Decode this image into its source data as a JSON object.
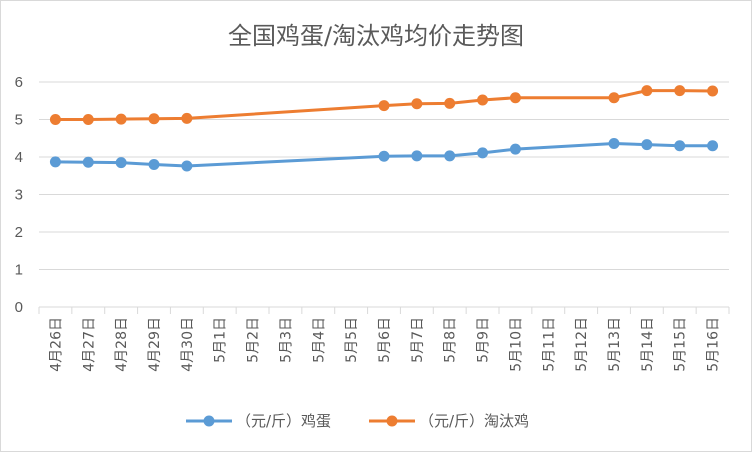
{
  "chart_data": {
    "type": "line",
    "title": "全国鸡蛋/淘汰鸡均价走势图",
    "xlabel": "",
    "ylabel": "",
    "ylim": [
      0,
      6
    ],
    "yticks": [
      "0",
      "1",
      "2",
      "3",
      "4",
      "5",
      "6"
    ],
    "grid": "horizontal",
    "legend": "bottom",
    "categories": [
      "4月26日",
      "4月27日",
      "4月28日",
      "4月29日",
      "4月30日",
      "5月1日",
      "5月2日",
      "5月3日",
      "5月4日",
      "5月5日",
      "5月6日",
      "5月7日",
      "5月8日",
      "5月9日",
      "5月10日",
      "5月11日",
      "5月12日",
      "5月13日",
      "5月14日",
      "5月15日",
      "5月16日"
    ],
    "series": [
      {
        "name": "（元/斤）鸡蛋",
        "color": "#5b9bd5",
        "values": [
          3.87,
          3.86,
          3.85,
          3.8,
          3.76,
          null,
          null,
          null,
          null,
          null,
          4.02,
          4.03,
          4.03,
          4.11,
          4.21,
          null,
          null,
          4.36,
          4.33,
          4.3,
          4.3
        ]
      },
      {
        "name": "（元/斤）淘汰鸡",
        "color": "#ed7d31",
        "values": [
          5.0,
          5.0,
          5.01,
          5.02,
          5.03,
          null,
          null,
          null,
          null,
          null,
          5.37,
          5.42,
          5.43,
          5.52,
          5.58,
          null,
          null,
          5.58,
          5.77,
          5.77,
          5.76
        ]
      }
    ]
  }
}
